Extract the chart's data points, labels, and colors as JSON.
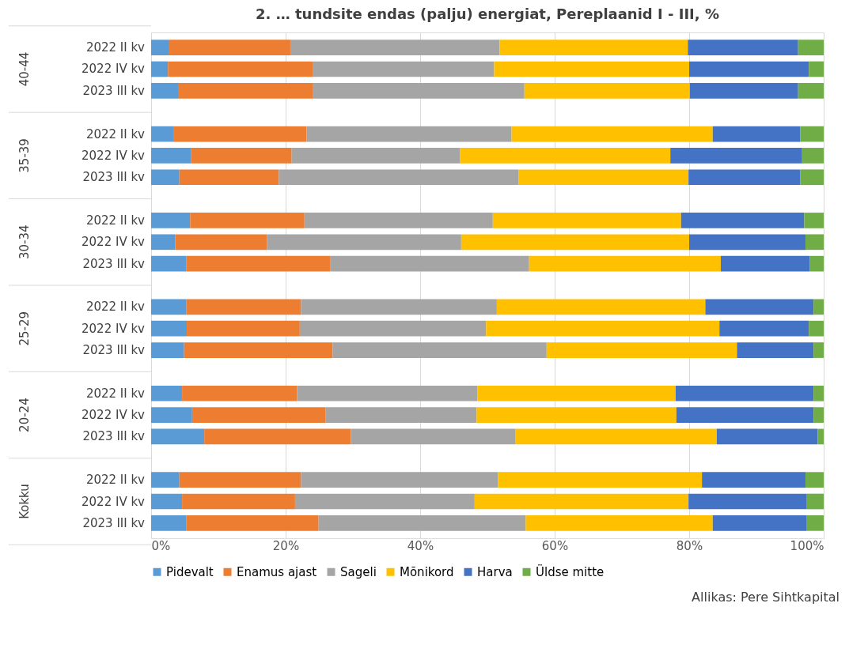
{
  "chart_data": {
    "type": "bar",
    "orientation": "horizontal",
    "stacked": true,
    "title": "2. … tundsite endas (palju) energiat, Pereplaanid I - III, %",
    "categories": [
      "2022 II kv",
      "2022 IV kv",
      "2023 III kv",
      "2022 II kv",
      "2022 IV kv",
      "2023 III kv",
      "2022 II kv",
      "2022 IV kv",
      "2023 III kv",
      "2022 II kv",
      "2022 IV kv",
      "2023 III kv",
      "2022 II kv",
      "2022 IV kv",
      "2023 III kv",
      "2022 II kv",
      "2022 IV kv",
      "2023 III kv"
    ],
    "series": [
      {
        "name": "Pidevalt",
        "color": "#5b9bd5",
        "values": [
          2.7,
          2.5,
          4.0,
          3.3,
          5.9,
          4.2,
          5.8,
          3.6,
          5.2,
          5.2,
          5.3,
          4.9,
          4.6,
          6.1,
          7.9,
          4.2,
          4.6,
          5.2
        ]
      },
      {
        "name": "Enamus ajast",
        "color": "#ed7d31",
        "values": [
          18.0,
          21.5,
          20.0,
          19.8,
          15.0,
          14.8,
          17.0,
          13.6,
          21.4,
          17.1,
          16.8,
          22.1,
          17.1,
          19.8,
          21.8,
          18.1,
          16.8,
          19.7
        ]
      },
      {
        "name": "Sageli",
        "color": "#a5a5a5",
        "values": [
          31.1,
          27.0,
          31.5,
          30.5,
          25.0,
          35.6,
          28.0,
          28.9,
          29.6,
          29.1,
          27.7,
          31.8,
          26.8,
          22.5,
          24.5,
          29.3,
          26.7,
          30.8
        ]
      },
      {
        "name": "Mõnikord",
        "color": "#ffc000",
        "values": [
          28.0,
          29.0,
          24.6,
          29.9,
          31.3,
          25.3,
          28.0,
          33.9,
          28.5,
          31.0,
          34.7,
          28.3,
          29.5,
          29.7,
          29.9,
          30.3,
          31.8,
          27.8
        ]
      },
      {
        "name": "Harva",
        "color": "#4472c4",
        "values": [
          16.4,
          17.8,
          16.1,
          13.0,
          19.6,
          16.6,
          18.3,
          17.3,
          13.2,
          16.1,
          13.3,
          11.4,
          20.5,
          20.4,
          15.0,
          15.4,
          17.6,
          14.0
        ]
      },
      {
        "name": "Üldse mitte",
        "color": "#70ad47",
        "values": [
          3.8,
          2.2,
          3.8,
          3.5,
          3.2,
          3.5,
          2.9,
          2.7,
          2.1,
          1.5,
          2.2,
          1.5,
          1.5,
          1.5,
          0.9,
          2.7,
          2.5,
          2.5
        ]
      }
    ],
    "xlim": [
      0,
      100
    ],
    "xticks": [
      {
        "value": 0,
        "label": "0%"
      },
      {
        "value": 20,
        "label": "20%"
      },
      {
        "value": 40,
        "label": "40%"
      },
      {
        "value": 60,
        "label": "60%"
      },
      {
        "value": 80,
        "label": "80%"
      },
      {
        "value": 100,
        "label": "100%"
      }
    ],
    "grid": "x",
    "legend": "bottom",
    "annotations": [
      "40-44",
      "35-39",
      "30-34",
      "25-29",
      "20-24",
      "Kokku",
      "Allikas: Pere Sihtkapital"
    ]
  }
}
